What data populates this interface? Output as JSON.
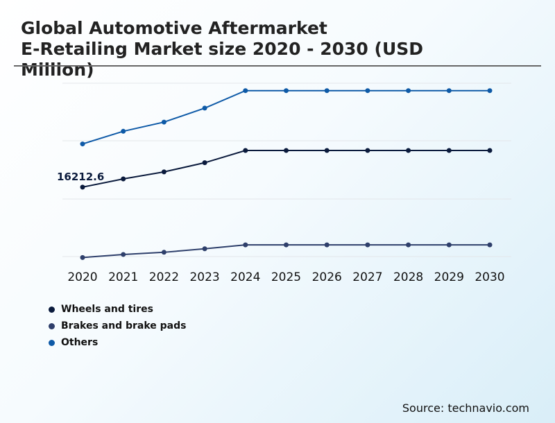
{
  "chart_data": {
    "type": "line",
    "title_line1": "Global Automotive Aftermarket",
    "title_line2": "E-Retailing Market size 2020 - 2030 (USD",
    "title_line3": "Million)",
    "x": [
      "2020",
      "2021",
      "2022",
      "2023",
      "2024",
      "2025",
      "2026",
      "2027",
      "2028",
      "2029",
      "2030"
    ],
    "ylim": [
      0,
      40000
    ],
    "grid": true,
    "series": [
      {
        "name": "Wheels and tires",
        "color": "#0a1a3c",
        "values": [
          16212.6,
          18100,
          19700,
          21800,
          24600,
          24600,
          24600,
          24600,
          24600,
          24600,
          24600
        ]
      },
      {
        "name": "Brakes and brake pads",
        "color": "#2e3f6b",
        "values": [
          100,
          800,
          1300,
          2100,
          3000,
          3000,
          3000,
          3000,
          3000,
          3000,
          3000
        ]
      },
      {
        "name": "Others",
        "color": "#0e5aa7",
        "values": [
          26100,
          29000,
          31100,
          34300,
          38300,
          38300,
          38300,
          38300,
          38300,
          38300,
          38300
        ]
      }
    ],
    "annotation": {
      "series": 0,
      "point": 0,
      "text": "16212.6"
    }
  },
  "source": "Source: technavio.com"
}
